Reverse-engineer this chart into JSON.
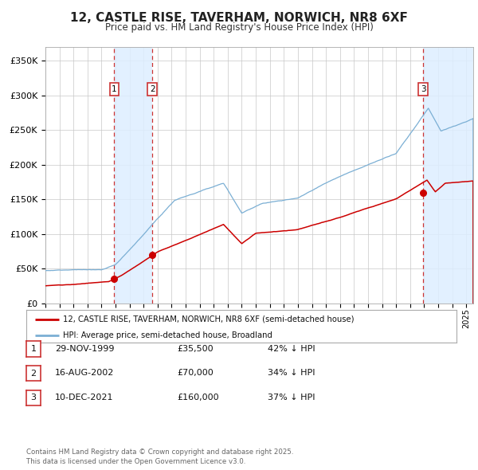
{
  "title": "12, CASTLE RISE, TAVERHAM, NORWICH, NR8 6XF",
  "subtitle": "Price paid vs. HM Land Registry's House Price Index (HPI)",
  "background_color": "#ffffff",
  "plot_background_color": "#ffffff",
  "grid_color": "#c8c8c8",
  "legend_label_red": "12, CASTLE RISE, TAVERHAM, NORWICH, NR8 6XF (semi-detached house)",
  "legend_label_blue": "HPI: Average price, semi-detached house, Broadland",
  "red_color": "#cc0000",
  "blue_color": "#7bafd4",
  "shade_color": "#ddeeff",
  "vline_color": "#cc3333",
  "ytick_labels": [
    "£0",
    "£50K",
    "£100K",
    "£150K",
    "£200K",
    "£250K",
    "£300K",
    "£350K"
  ],
  "ytick_values": [
    0,
    50000,
    100000,
    150000,
    200000,
    250000,
    300000,
    350000
  ],
  "ylim": [
    0,
    370000
  ],
  "sale_dates": [
    1999.91,
    2002.62,
    2021.94
  ],
  "sale_prices": [
    35500,
    70000,
    160000
  ],
  "sale_labels": [
    "1",
    "2",
    "3"
  ],
  "shade_ranges": [
    [
      1999.91,
      2002.62
    ],
    [
      2021.94,
      2025.5
    ]
  ],
  "table_rows": [
    [
      "1",
      "29-NOV-1999",
      "£35,500",
      "42% ↓ HPI"
    ],
    [
      "2",
      "16-AUG-2002",
      "£70,000",
      "34% ↓ HPI"
    ],
    [
      "3",
      "10-DEC-2021",
      "£160,000",
      "37% ↓ HPI"
    ]
  ],
  "footnote1": "Contains HM Land Registry data © Crown copyright and database right 2025.",
  "footnote2": "This data is licensed under the Open Government Licence v3.0.",
  "xmin": 1995.0,
  "xmax": 2025.5
}
